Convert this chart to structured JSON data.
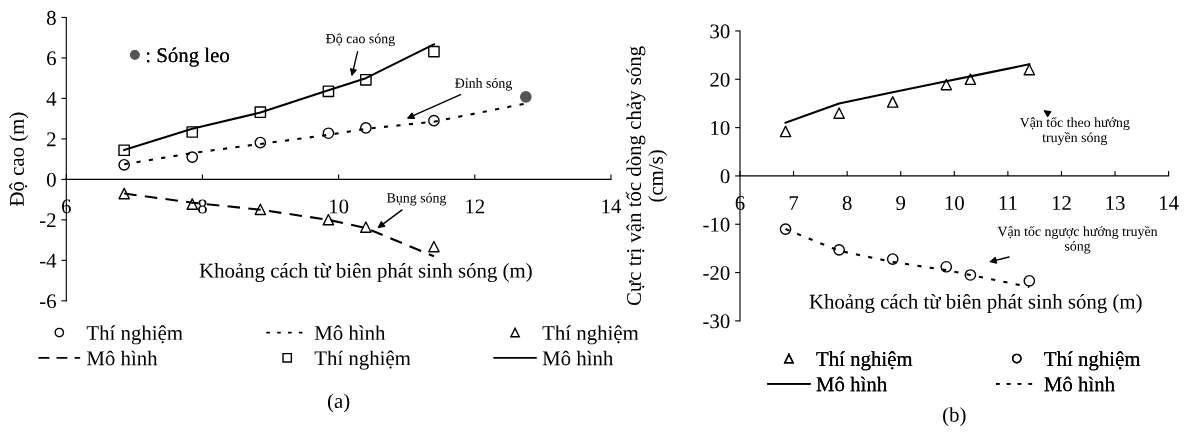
{
  "chart_data": [
    {
      "type": "line",
      "title": "(a)",
      "xlabel": "Khoảng cách từ biên phát sinh sóng (m)",
      "ylabel": "Độ cao (m)",
      "xlim": [
        6,
        14
      ],
      "xticks": [
        6,
        8,
        10,
        12,
        14
      ],
      "ylim": [
        -6,
        8
      ],
      "yticks": [
        -6,
        -4,
        -2,
        0,
        2,
        4,
        6,
        8
      ],
      "grid": false,
      "legend": "bottom",
      "series": [
        {
          "name": "Thí nghiệm",
          "type": "scatter",
          "marker": "circle",
          "color": "#000000",
          "x": [
            6.85,
            7.85,
            8.85,
            9.85,
            10.4,
            11.4
          ],
          "values": [
            0.72,
            1.1,
            1.82,
            2.28,
            2.54,
            2.9
          ]
        },
        {
          "name": "Mô hình",
          "line_style": "dashed",
          "color": "#000000",
          "x": [
            6.85,
            7.85,
            8.85,
            9.85,
            10.4,
            11.4
          ],
          "values": [
            -0.7,
            -1.15,
            -1.5,
            -2.0,
            -2.4,
            -3.8
          ]
        },
        {
          "name": "Mô hình",
          "line_style": "dotted",
          "color": "#000000",
          "x": [
            6.85,
            7.85,
            8.85,
            9.85,
            10.4,
            11.4,
            12.75
          ],
          "values": [
            0.75,
            1.3,
            1.75,
            2.2,
            2.5,
            2.85,
            3.75
          ]
        },
        {
          "name": "Thí nghiệm",
          "type": "scatter",
          "marker": "square",
          "color": "#000000",
          "x": [
            6.85,
            7.85,
            8.85,
            9.85,
            10.4,
            11.4
          ],
          "values": [
            1.44,
            2.34,
            3.32,
            4.35,
            4.92,
            6.31
          ]
        },
        {
          "name": "Thí nghiệm",
          "type": "scatter",
          "marker": "triangle",
          "color": "#000000",
          "x": [
            6.85,
            7.85,
            8.85,
            9.85,
            10.4,
            11.4
          ],
          "values": [
            -0.7,
            -1.22,
            -1.48,
            -1.99,
            -2.36,
            -3.32
          ]
        },
        {
          "name": "Mô hình",
          "line_style": "solid",
          "color": "#000000",
          "x": [
            6.85,
            7.85,
            8.85,
            9.85,
            10.4,
            11.4
          ],
          "values": [
            1.45,
            2.5,
            3.3,
            4.4,
            5.0,
            6.67
          ]
        },
        {
          "name": ": Sóng leo",
          "type": "scatter",
          "marker": "circle",
          "color": "#555555",
          "x": [
            12.75
          ],
          "values": [
            4.08
          ]
        }
      ],
      "annotations": [
        "Độ cao sóng",
        "Đỉnh sóng",
        "Bụng sóng"
      ]
    },
    {
      "type": "line",
      "title": "(b)",
      "xlabel": "Khoảng cách từ biên phát sinh sóng (m)",
      "ylabel": "Cực trị vận tốc dòng chảy sóng\n(cm/s)",
      "xlim": [
        6,
        14
      ],
      "xticks": [
        6,
        7,
        8,
        9,
        10,
        11,
        12,
        13,
        14
      ],
      "ylim": [
        -30,
        30
      ],
      "yticks": [
        -30,
        -20,
        -10,
        0,
        10,
        20,
        30
      ],
      "grid": false,
      "legend": "bottom",
      "series": [
        {
          "name": "Thí nghiệm",
          "type": "scatter",
          "marker": "triangle",
          "color": "#000000",
          "x": [
            6.85,
            7.85,
            8.85,
            9.85,
            10.3,
            11.4
          ],
          "values": [
            9.2,
            13.0,
            15.3,
            18.9,
            20.0,
            22.0
          ]
        },
        {
          "name": "Mô hình",
          "line_style": "solid",
          "color": "#000000",
          "x": [
            6.85,
            7.85,
            8.85,
            9.85,
            10.3,
            11.4
          ],
          "values": [
            11.0,
            15.0,
            17.3,
            19.6,
            20.6,
            23.1
          ]
        },
        {
          "name": "Thí nghiệm",
          "type": "scatter",
          "marker": "circle",
          "color": "#000000",
          "x": [
            6.85,
            7.85,
            8.85,
            9.85,
            10.3,
            11.4
          ],
          "values": [
            -11.0,
            -15.3,
            -17.2,
            -18.8,
            -20.5,
            -21.7
          ]
        },
        {
          "name": "Mô hình",
          "line_style": "dotted",
          "color": "#000000",
          "x": [
            6.85,
            7.85,
            8.85,
            9.85,
            10.3,
            11.4
          ],
          "values": [
            -11.0,
            -15.5,
            -17.8,
            -19.5,
            -20.5,
            -23.0
          ]
        }
      ],
      "annotations": [
        "Vận tốc theo hướng\ntruyền sóng",
        "Vận tốc ngược hướng truyền\nsóng"
      ]
    }
  ]
}
